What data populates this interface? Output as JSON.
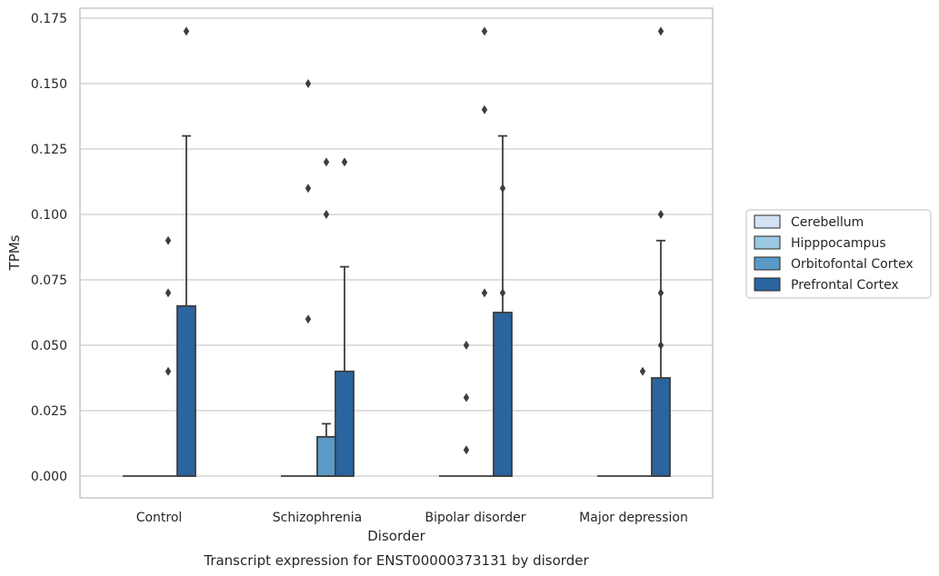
{
  "chart_data": {
    "type": "box",
    "title": "Transcript expression for ENST00000373131 by disorder",
    "xlabel": "Disorder",
    "ylabel": "TPMs",
    "ylim": [
      -0.0085,
      0.179
    ],
    "yticks": [
      "0.000",
      "0.025",
      "0.050",
      "0.075",
      "0.100",
      "0.125",
      "0.150",
      "0.175"
    ],
    "ytick_values": [
      0,
      0.025,
      0.05,
      0.075,
      0.1,
      0.125,
      0.15,
      0.175
    ],
    "grid": true,
    "legend_position": "right",
    "categories": [
      "Control",
      "Schizophrenia",
      "Bipolar disorder",
      "Major depression"
    ],
    "series": [
      {
        "name": "Cerebellum",
        "color": "#d1e2f2",
        "boxes": [
          {
            "q1": 0,
            "median": 0,
            "q3": 0,
            "whislo": 0,
            "whishi": 0,
            "fliers": []
          },
          {
            "q1": 0,
            "median": 0,
            "q3": 0,
            "whislo": 0,
            "whishi": 0,
            "fliers": []
          },
          {
            "q1": 0,
            "median": 0,
            "q3": 0,
            "whislo": 0,
            "whishi": 0,
            "fliers": []
          },
          {
            "q1": 0,
            "median": 0,
            "q3": 0,
            "whislo": 0,
            "whishi": 0,
            "fliers": []
          }
        ]
      },
      {
        "name": "Hipppocampus",
        "color": "#9ac8e0",
        "boxes": [
          {
            "q1": 0,
            "median": 0,
            "q3": 0,
            "whislo": 0,
            "whishi": 0,
            "fliers": []
          },
          {
            "q1": 0,
            "median": 0,
            "q3": 0,
            "whislo": 0,
            "whishi": 0,
            "fliers": [
              0.06,
              0.11,
              0.15
            ]
          },
          {
            "q1": 0,
            "median": 0,
            "q3": 0,
            "whislo": 0,
            "whishi": 0,
            "fliers": [
              0.01,
              0.03,
              0.05
            ]
          },
          {
            "q1": 0,
            "median": 0,
            "q3": 0,
            "whislo": 0,
            "whishi": 0,
            "fliers": []
          }
        ]
      },
      {
        "name": "Orbitofontal Cortex",
        "color": "#5a9ac6",
        "boxes": [
          {
            "q1": 0,
            "median": 0,
            "q3": 0,
            "whislo": 0,
            "whishi": 0,
            "fliers": [
              0.04,
              0.07,
              0.09
            ]
          },
          {
            "q1": 0,
            "median": 0,
            "q3": 0.015,
            "whislo": 0,
            "whishi": 0.02,
            "fliers": [
              0.1,
              0.12
            ]
          },
          {
            "q1": 0,
            "median": 0,
            "q3": 0,
            "whislo": 0,
            "whishi": 0,
            "fliers": [
              0.07,
              0.14,
              0.17
            ]
          },
          {
            "q1": 0,
            "median": 0,
            "q3": 0,
            "whislo": 0,
            "whishi": 0,
            "fliers": [
              0.04
            ]
          }
        ]
      },
      {
        "name": "Prefrontal Cortex",
        "color": "#2a65a0",
        "boxes": [
          {
            "q1": 0,
            "median": 0,
            "q3": 0.065,
            "whislo": 0,
            "whishi": 0.13,
            "fliers": [
              0.17
            ]
          },
          {
            "q1": 0,
            "median": 0,
            "q3": 0.04,
            "whislo": 0,
            "whishi": 0.08,
            "fliers": [
              0.12
            ]
          },
          {
            "q1": 0,
            "median": 0,
            "q3": 0.0625,
            "whislo": 0,
            "whishi": 0.13,
            "fliers": [
              0.07,
              0.11
            ]
          },
          {
            "q1": 0,
            "median": 0,
            "q3": 0.0375,
            "whislo": 0,
            "whishi": 0.09,
            "fliers": [
              0.05,
              0.07,
              0.1,
              0.17
            ]
          }
        ]
      }
    ]
  }
}
